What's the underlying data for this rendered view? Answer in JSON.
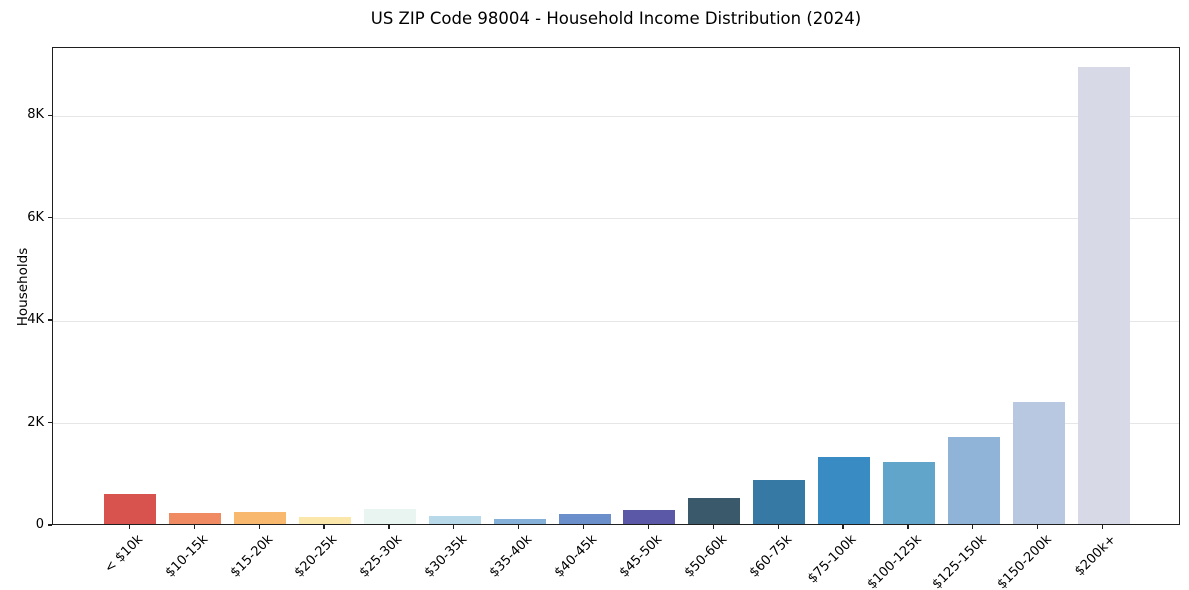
{
  "chart_data": {
    "type": "bar",
    "title": "US ZIP Code 98004 - Household Income Distribution (2024)",
    "xlabel": "",
    "ylabel": "Households",
    "categories": [
      "< $10k",
      "$10-15k",
      "$15-20k",
      "$20-25k",
      "$25-30k",
      "$30-35k",
      "$35-40k",
      "$40-45k",
      "$45-50k",
      "$50-60k",
      "$60-75k",
      "$75-100k",
      "$100-125k",
      "$125-150k",
      "$150-200k",
      "$200k+"
    ],
    "values": [
      580,
      210,
      240,
      130,
      300,
      150,
      105,
      205,
      280,
      500,
      850,
      1300,
      1220,
      1690,
      2390,
      8920
    ],
    "bar_colors": [
      "#d8524e",
      "#f08a63",
      "#f8b86e",
      "#fbe7a9",
      "#e8f5f1",
      "#b8d9ea",
      "#85b1d9",
      "#6b8fca",
      "#5b58a8",
      "#3a5a6c",
      "#3679a5",
      "#388cc3",
      "#61a5cb",
      "#90b4d8",
      "#b7c8e0",
      "#d7d9e7"
    ],
    "ylim": [
      0,
      9330
    ],
    "y_ticks": [
      {
        "value": 0,
        "label": "0"
      },
      {
        "value": 2000,
        "label": "2K"
      },
      {
        "value": 4000,
        "label": "4K"
      },
      {
        "value": 6000,
        "label": "6K"
      },
      {
        "value": 8000,
        "label": "8K"
      }
    ],
    "grid": "horizontal-only",
    "legend": "none",
    "bar_width_fraction": 0.8
  },
  "colors": {
    "grid": "#e6e6e6",
    "spine": "#1f1f1f",
    "text": "#000000",
    "background": "#ffffff"
  }
}
